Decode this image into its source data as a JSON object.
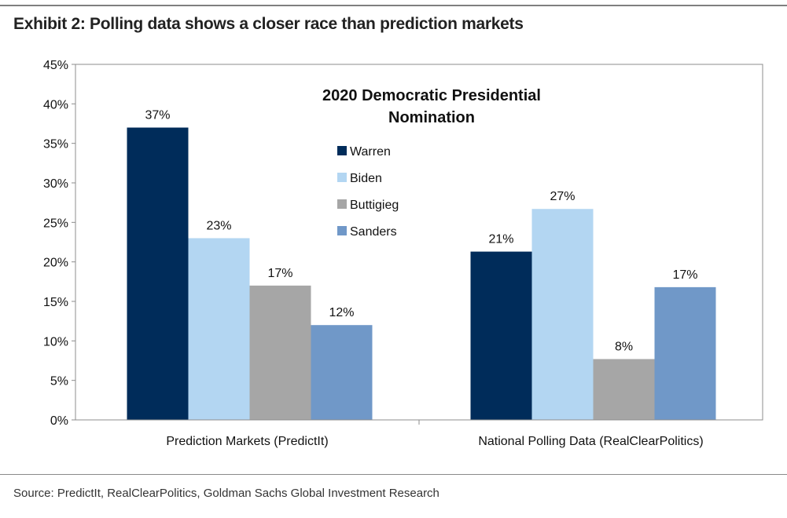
{
  "exhibit_title": "Exhibit 2: Polling data shows a closer race than prediction markets",
  "source": "Source: PredictIt, RealClearPolitics, Goldman Sachs Global Investment Research",
  "chart_data": {
    "type": "bar",
    "title_lines": [
      "2020 Democratic Presidential",
      "Nomination"
    ],
    "categories": [
      "Prediction Markets (PredictIt)",
      "National Polling Data (RealClearPolitics)"
    ],
    "series": [
      {
        "name": "Warren",
        "color": "#002c5a",
        "values": [
          37,
          21.3
        ],
        "labels": [
          "37%",
          "21%"
        ]
      },
      {
        "name": "Biden",
        "color": "#b3d6f2",
        "values": [
          23,
          26.7
        ],
        "labels": [
          "23%",
          "27%"
        ]
      },
      {
        "name": "Buttigieg",
        "color": "#a6a6a6",
        "values": [
          17,
          7.7
        ],
        "labels": [
          "17%",
          "8%"
        ]
      },
      {
        "name": "Sanders",
        "color": "#7098c8",
        "values": [
          12,
          16.8
        ],
        "labels": [
          "12%",
          "17%"
        ]
      }
    ],
    "ylim": [
      0,
      45
    ],
    "yticks": [
      0,
      5,
      10,
      15,
      20,
      25,
      30,
      35,
      40,
      45
    ],
    "ytick_labels": [
      "0%",
      "5%",
      "10%",
      "15%",
      "20%",
      "25%",
      "30%",
      "35%",
      "40%",
      "45%"
    ],
    "xlabel": "",
    "ylabel": "",
    "legend_position": "center"
  }
}
